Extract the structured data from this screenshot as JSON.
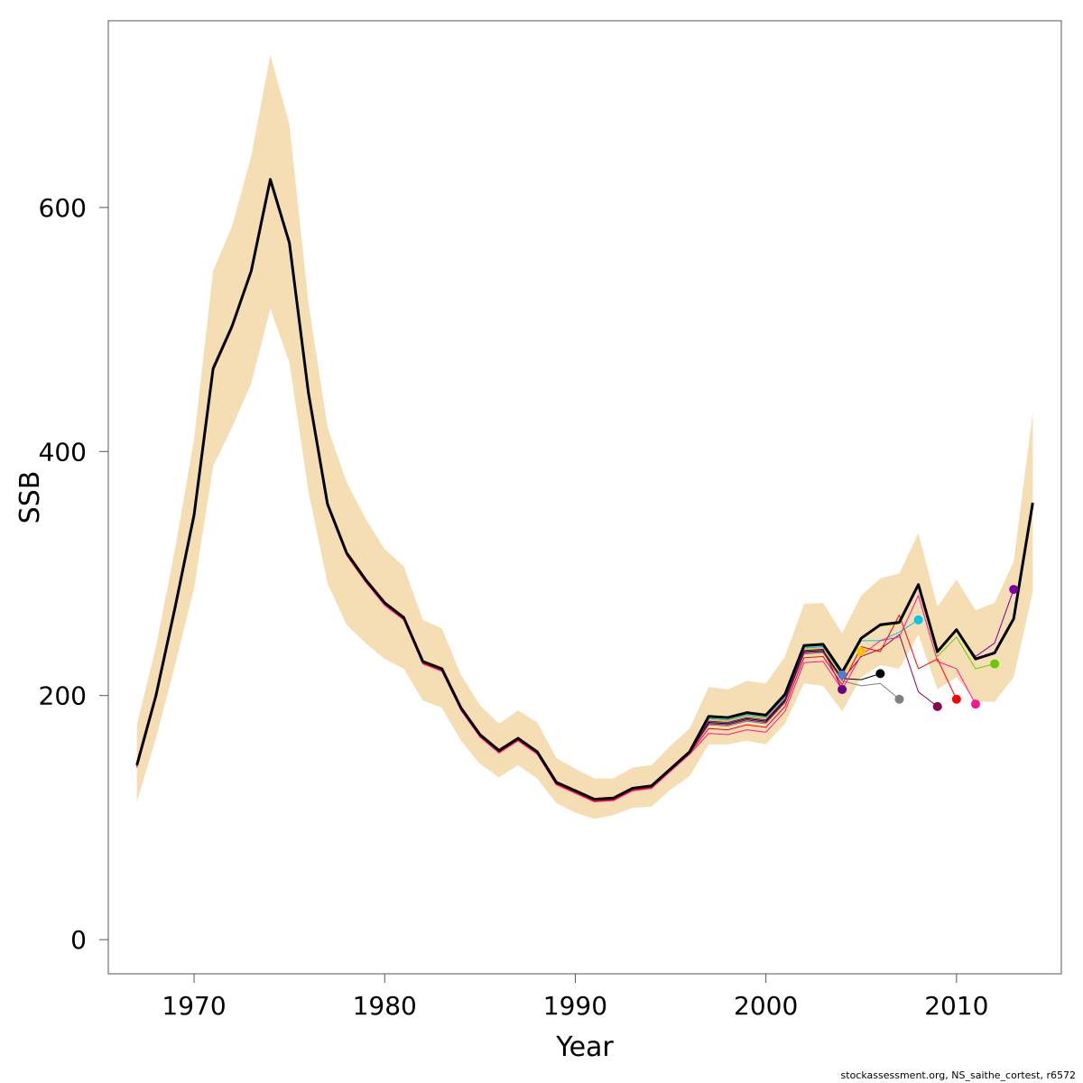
{
  "chart_data": {
    "type": "line",
    "xlabel": "Year",
    "ylabel": "SSB",
    "xlim": [
      1965.5,
      2015.5
    ],
    "ylim": [
      -28,
      753
    ],
    "x_ticks": [
      1970,
      1980,
      1990,
      2000,
      2010
    ],
    "y_ticks": [
      0,
      200,
      400,
      600
    ],
    "grid": false,
    "band_color": "#f5deb3",
    "band": {
      "x": [
        1967,
        1968,
        1969,
        1970,
        1971,
        1972,
        1973,
        1974,
        1975,
        1976,
        1977,
        1978,
        1979,
        1980,
        1981,
        1982,
        1983,
        1984,
        1985,
        1986,
        1987,
        1988,
        1989,
        1990,
        1991,
        1992,
        1993,
        1994,
        1995,
        1996,
        1997,
        1998,
        1999,
        2000,
        2001,
        2002,
        2003,
        2004,
        2005,
        2006,
        2007,
        2008,
        2009,
        2010,
        2011,
        2012,
        2013,
        2014
      ],
      "upper": [
        176,
        240,
        320,
        410,
        548,
        585,
        642,
        725,
        668,
        522,
        420,
        375,
        345,
        320,
        306,
        262,
        255,
        217,
        192,
        177,
        188,
        178,
        149,
        140,
        132,
        132,
        141,
        143,
        159,
        173,
        207,
        205,
        212,
        210,
        232,
        275,
        276,
        251,
        282,
        296,
        300,
        333,
        273,
        295,
        270,
        276,
        310,
        432
      ],
      "lower": [
        113,
        165,
        225,
        288,
        388,
        420,
        456,
        517,
        473,
        367,
        292,
        258,
        243,
        230,
        222,
        196,
        190,
        163,
        144,
        133,
        143,
        132,
        112,
        104,
        99,
        102,
        108,
        109,
        123,
        134,
        160,
        160,
        163,
        160,
        177,
        210,
        208,
        187,
        215,
        225,
        222,
        250,
        205,
        215,
        195,
        195,
        215,
        285
      ]
    },
    "main_series": {
      "color": "#000000",
      "x": [
        1967,
        1968,
        1969,
        1970,
        1971,
        1972,
        1973,
        1974,
        1975,
        1976,
        1977,
        1978,
        1979,
        1980,
        1981,
        1982,
        1983,
        1984,
        1985,
        1986,
        1987,
        1988,
        1989,
        1990,
        1991,
        1992,
        1993,
        1994,
        1995,
        1996,
        1997,
        1998,
        1999,
        2000,
        2001,
        2002,
        2003,
        2004,
        2005,
        2006,
        2007,
        2008,
        2009,
        2010,
        2011,
        2012,
        2013,
        2014
      ],
      "y": [
        143,
        200,
        272,
        348,
        468,
        503,
        548,
        623,
        571,
        448,
        357,
        317,
        295,
        276,
        264,
        228,
        222,
        190,
        168,
        155,
        165,
        154,
        129,
        122,
        115,
        116,
        124,
        126,
        140,
        154,
        183,
        182,
        186,
        184,
        201,
        241,
        242,
        219,
        247,
        258,
        260,
        291,
        236,
        254,
        230,
        235,
        263,
        358
      ]
    },
    "peels": [
      {
        "color": "#808080",
        "end_year": 2007,
        "offset": -7,
        "tail": [
          208,
          210,
          197
        ]
      },
      {
        "color": "#000000",
        "end_year": 2006,
        "offset": -5,
        "tail": [
          213,
          218
        ]
      },
      {
        "color": "#ffc000",
        "end_year": 2005,
        "offset": -3,
        "tail": [
          236
        ]
      },
      {
        "color": "#6a008a",
        "end_year": 2004,
        "offset": -4,
        "tail": [
          205
        ]
      },
      {
        "color": "#4a7fd4",
        "end_year": 2004,
        "offset": -2,
        "tail": []
      },
      {
        "color": "#00c5ee",
        "end_year": 2008,
        "offset": -2,
        "tail": [
          245,
          252,
          262
        ]
      },
      {
        "color": "#8b0050",
        "end_year": 2009,
        "offset": -6,
        "tail": [
          232,
          238,
          250,
          203,
          191
        ]
      },
      {
        "color": "#ff0000",
        "end_year": 2010,
        "offset": -10,
        "tail": [
          240,
          236,
          266,
          222,
          230,
          197
        ]
      },
      {
        "color": "#ff1493",
        "end_year": 2011,
        "offset": -14,
        "tail": [
          245,
          248,
          282,
          228,
          222,
          193
        ]
      },
      {
        "color": "#66cc00",
        "end_year": 2012,
        "offset": -1,
        "tail": [
          232,
          248,
          222,
          226
        ]
      },
      {
        "color": "#7b00a8",
        "end_year": 2013,
        "offset": 0,
        "tail": [
          232,
          243,
          287
        ]
      }
    ]
  },
  "footer_text": "stockassessment.org, NS_saithe_cortest, r6572"
}
